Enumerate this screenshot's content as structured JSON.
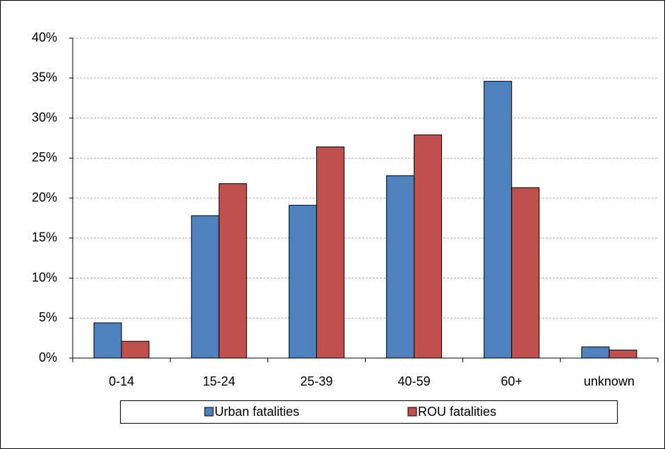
{
  "chart_data": {
    "type": "bar",
    "categories": [
      "0-14",
      "15-24",
      "25-39",
      "40-59",
      "60+",
      "unknown"
    ],
    "series": [
      {
        "name": "Urban fatalities",
        "color": "#4f81bd",
        "values": [
          4.4,
          17.8,
          19.1,
          22.8,
          34.6,
          1.4
        ]
      },
      {
        "name": "ROU fatalities",
        "color": "#c0504d",
        "values": [
          2.1,
          21.8,
          26.4,
          27.9,
          21.3,
          1.0
        ]
      }
    ],
    "ylim": [
      0,
      40
    ],
    "yticks": [
      {
        "value": 0,
        "label": "0%"
      },
      {
        "value": 5,
        "label": "5%"
      },
      {
        "value": 10,
        "label": "10%"
      },
      {
        "value": 15,
        "label": "15%"
      },
      {
        "value": 20,
        "label": "20%"
      },
      {
        "value": 25,
        "label": "25%"
      },
      {
        "value": 30,
        "label": "30%"
      },
      {
        "value": 35,
        "label": "35%"
      },
      {
        "value": 40,
        "label": "40%"
      }
    ],
    "grid": true,
    "legend": "bottom"
  }
}
